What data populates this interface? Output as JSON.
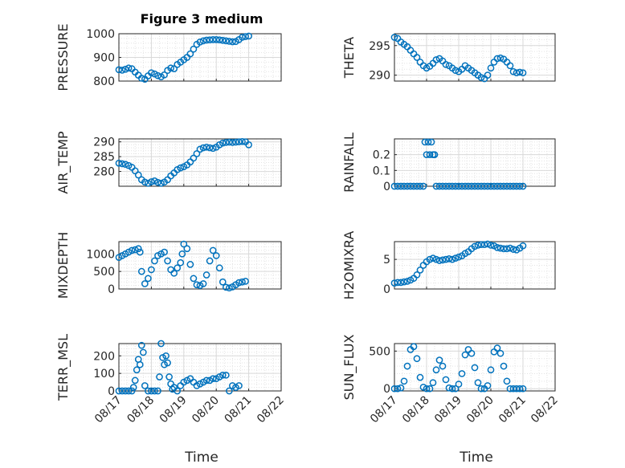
{
  "title": "Figure 3 medium",
  "xlabel": "Time",
  "x_ticks": [
    "08/17",
    "08/18",
    "08/19",
    "08/20",
    "08/21",
    "08/22"
  ],
  "marker_color": "#0072BD",
  "chart_data": [
    {
      "type": "scatter",
      "ylabel": "PRESSURE",
      "ylim": [
        800,
        1000
      ],
      "yticks": [
        800,
        900,
        1000
      ],
      "grid": true,
      "x": [
        17.0,
        17.1,
        17.2,
        17.3,
        17.4,
        17.5,
        17.6,
        17.7,
        17.8,
        17.9,
        18.0,
        18.1,
        18.2,
        18.3,
        18.4,
        18.5,
        18.6,
        18.7,
        18.8,
        18.9,
        19.0,
        19.1,
        19.2,
        19.3,
        19.4,
        19.5,
        19.6,
        19.7,
        19.8,
        19.9,
        20.0,
        20.1,
        20.2,
        20.3,
        20.4,
        20.5,
        20.6,
        20.7,
        20.8,
        20.9,
        21.0
      ],
      "y": [
        848,
        846,
        850,
        855,
        852,
        838,
        825,
        812,
        808,
        822,
        835,
        830,
        823,
        818,
        826,
        845,
        855,
        852,
        870,
        880,
        890,
        900,
        915,
        935,
        955,
        965,
        970,
        973,
        974,
        975,
        975,
        974,
        972,
        970,
        968,
        966,
        967,
        975,
        985,
        988,
        990
      ]
    },
    {
      "type": "scatter",
      "ylabel": "THETA",
      "ylim": [
        289,
        297
      ],
      "yticks": [
        290,
        295
      ],
      "grid": true,
      "x": [
        17.0,
        17.1,
        17.2,
        17.3,
        17.4,
        17.5,
        17.6,
        17.7,
        17.8,
        17.9,
        18.0,
        18.1,
        18.2,
        18.3,
        18.4,
        18.5,
        18.6,
        18.7,
        18.8,
        18.9,
        19.0,
        19.1,
        19.2,
        19.3,
        19.4,
        19.5,
        19.6,
        19.7,
        19.8,
        19.9,
        20.0,
        20.1,
        20.2,
        20.3,
        20.4,
        20.5,
        20.6,
        20.7,
        20.8,
        20.9,
        21.0
      ],
      "y": [
        296.4,
        296.2,
        295.6,
        295.2,
        294.8,
        294.2,
        293.6,
        293.0,
        292.2,
        291.6,
        291.2,
        291.5,
        292.0,
        292.6,
        292.8,
        292.4,
        291.8,
        291.6,
        291.2,
        290.8,
        290.6,
        291.0,
        291.6,
        291.2,
        290.8,
        290.4,
        290.0,
        289.6,
        289.4,
        290.0,
        291.2,
        292.2,
        292.8,
        292.9,
        292.7,
        292.2,
        291.6,
        290.6,
        290.4,
        290.5,
        290.4
      ]
    },
    {
      "type": "scatter",
      "ylabel": "AIR_TEMP",
      "ylim": [
        275,
        291
      ],
      "yticks": [
        280,
        285,
        290
      ],
      "grid": true,
      "x": [
        17.0,
        17.1,
        17.2,
        17.3,
        17.4,
        17.5,
        17.6,
        17.7,
        17.8,
        17.9,
        18.0,
        18.1,
        18.2,
        18.3,
        18.4,
        18.5,
        18.6,
        18.7,
        18.8,
        18.9,
        19.0,
        19.1,
        19.2,
        19.3,
        19.4,
        19.5,
        19.6,
        19.7,
        19.8,
        19.9,
        20.0,
        20.1,
        20.2,
        20.3,
        20.4,
        20.5,
        20.6,
        20.7,
        20.8,
        20.9,
        21.0
      ],
      "y": [
        282.8,
        282.6,
        282.4,
        282.0,
        281.4,
        280.2,
        278.8,
        277.2,
        276.4,
        276.0,
        276.5,
        276.8,
        276.3,
        276.0,
        276.4,
        277.2,
        278.5,
        279.5,
        280.6,
        281.2,
        281.6,
        282.2,
        283.2,
        284.5,
        286.0,
        287.5,
        288.0,
        288.2,
        288.0,
        287.8,
        288.2,
        289.0,
        289.6,
        289.8,
        289.9,
        289.8,
        289.9,
        290.0,
        290.1,
        290.0,
        289.0
      ]
    },
    {
      "type": "scatter",
      "ylabel": "RAINFALL",
      "ylim": [
        0,
        0.3
      ],
      "yticks": [
        0,
        0.1,
        0.2
      ],
      "grid": true,
      "x": [
        17.0,
        17.1,
        17.2,
        17.3,
        17.4,
        17.5,
        17.6,
        17.7,
        17.8,
        17.9,
        17.95,
        18.0,
        18.05,
        18.1,
        18.15,
        18.2,
        18.25,
        18.3,
        18.4,
        18.5,
        18.6,
        18.7,
        18.8,
        18.9,
        19.0,
        19.1,
        19.2,
        19.3,
        19.4,
        19.5,
        19.6,
        19.7,
        19.8,
        19.9,
        20.0,
        20.1,
        20.2,
        20.3,
        20.4,
        20.5,
        20.6,
        20.7,
        20.8,
        20.9,
        21.0
      ],
      "y": [
        0,
        0,
        0,
        0,
        0,
        0,
        0,
        0,
        0,
        0,
        0.28,
        0.2,
        0.28,
        0.2,
        0.28,
        0.2,
        0.2,
        0,
        0,
        0,
        0,
        0,
        0,
        0,
        0,
        0,
        0,
        0,
        0,
        0,
        0,
        0,
        0,
        0,
        0,
        0,
        0,
        0,
        0,
        0,
        0,
        0,
        0,
        0,
        0
      ]
    },
    {
      "type": "scatter",
      "ylabel": "MIXDEPTH",
      "ylim": [
        0,
        1350
      ],
      "yticks": [
        0,
        500,
        1000
      ],
      "grid": true,
      "x": [
        17.0,
        17.1,
        17.2,
        17.3,
        17.4,
        17.5,
        17.6,
        17.65,
        17.7,
        17.8,
        17.9,
        18.0,
        18.1,
        18.2,
        18.3,
        18.4,
        18.5,
        18.6,
        18.7,
        18.8,
        18.9,
        18.95,
        19.0,
        19.1,
        19.2,
        19.3,
        19.4,
        19.5,
        19.6,
        19.7,
        19.8,
        19.9,
        20.0,
        20.1,
        20.2,
        20.3,
        20.4,
        20.5,
        20.6,
        20.7,
        20.8,
        20.9
      ],
      "y": [
        900,
        950,
        1000,
        1050,
        1100,
        1120,
        1150,
        1050,
        500,
        150,
        300,
        550,
        800,
        950,
        1000,
        1050,
        800,
        550,
        450,
        600,
        750,
        1000,
        1280,
        1150,
        700,
        300,
        120,
        100,
        150,
        400,
        800,
        1100,
        950,
        600,
        200,
        50,
        30,
        60,
        120,
        180,
        200,
        220
      ]
    },
    {
      "type": "scatter",
      "ylabel": "H2OMIXRA",
      "ylim": [
        0,
        8
      ],
      "yticks": [
        0,
        5
      ],
      "grid": true,
      "x": [
        17.0,
        17.1,
        17.2,
        17.3,
        17.4,
        17.5,
        17.6,
        17.7,
        17.8,
        17.9,
        18.0,
        18.1,
        18.2,
        18.3,
        18.4,
        18.5,
        18.6,
        18.7,
        18.8,
        18.9,
        19.0,
        19.1,
        19.2,
        19.3,
        19.4,
        19.5,
        19.6,
        19.7,
        19.8,
        19.9,
        20.0,
        20.1,
        20.2,
        20.3,
        20.4,
        20.5,
        20.6,
        20.7,
        20.8,
        20.9,
        21.0
      ],
      "y": [
        1.0,
        1.1,
        1.1,
        1.2,
        1.3,
        1.5,
        1.8,
        2.4,
        3.2,
        4.0,
        4.6,
        5.0,
        5.2,
        5.0,
        4.8,
        4.9,
        5.0,
        5.1,
        5.0,
        5.2,
        5.4,
        5.6,
        6.0,
        6.3,
        6.8,
        7.2,
        7.4,
        7.5,
        7.5,
        7.6,
        7.4,
        7.3,
        7.0,
        6.9,
        6.8,
        6.8,
        6.9,
        6.7,
        6.6,
        6.9,
        7.3
      ]
    },
    {
      "type": "scatter",
      "ylabel": "TERR_MSL",
      "ylim": [
        0,
        270
      ],
      "yticks": [
        0,
        100,
        200
      ],
      "grid": true,
      "x": [
        17.0,
        17.1,
        17.2,
        17.3,
        17.4,
        17.45,
        17.5,
        17.55,
        17.6,
        17.65,
        17.7,
        17.75,
        17.8,
        17.9,
        18.0,
        18.1,
        18.2,
        18.25,
        18.3,
        18.35,
        18.4,
        18.45,
        18.5,
        18.55,
        18.6,
        18.65,
        18.7,
        18.8,
        18.9,
        19.0,
        19.1,
        19.2,
        19.3,
        19.4,
        19.5,
        19.6,
        19.7,
        19.8,
        19.9,
        20.0,
        20.1,
        20.2,
        20.3,
        20.4,
        20.5,
        20.6,
        20.7
      ],
      "y": [
        0,
        0,
        0,
        0,
        0,
        20,
        60,
        120,
        180,
        150,
        260,
        220,
        30,
        0,
        0,
        0,
        0,
        80,
        270,
        190,
        150,
        200,
        160,
        80,
        40,
        10,
        20,
        0,
        30,
        50,
        60,
        70,
        50,
        30,
        40,
        50,
        60,
        60,
        70,
        70,
        80,
        90,
        90,
        0,
        30,
        20,
        30
      ]
    },
    {
      "type": "scatter",
      "ylabel": "SUN_FLUX",
      "ylim": [
        -30,
        600
      ],
      "yticks": [
        0,
        500
      ],
      "grid": true,
      "x": [
        17.0,
        17.1,
        17.2,
        17.3,
        17.4,
        17.5,
        17.6,
        17.7,
        17.8,
        17.9,
        18.0,
        18.1,
        18.2,
        18.3,
        18.4,
        18.5,
        18.6,
        18.7,
        18.8,
        18.9,
        19.0,
        19.1,
        19.2,
        19.3,
        19.4,
        19.5,
        19.6,
        19.7,
        19.8,
        19.9,
        20.0,
        20.1,
        20.2,
        20.3,
        20.4,
        20.5,
        20.6,
        20.7,
        20.8,
        20.9,
        21.0
      ],
      "y": [
        0,
        0,
        10,
        100,
        300,
        520,
        560,
        400,
        150,
        20,
        0,
        0,
        80,
        250,
        380,
        300,
        120,
        10,
        0,
        0,
        60,
        200,
        450,
        520,
        470,
        280,
        80,
        0,
        0,
        40,
        250,
        490,
        540,
        470,
        300,
        100,
        0,
        0,
        0,
        0,
        0
      ]
    }
  ]
}
